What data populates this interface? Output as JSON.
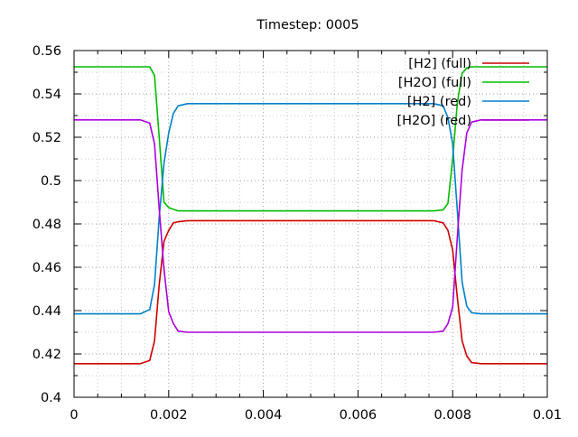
{
  "chart_data": {
    "type": "line",
    "title": "Timestep: 0005",
    "xlabel": "",
    "ylabel": "",
    "xlim": [
      0,
      0.01
    ],
    "ylim": [
      0.4,
      0.56
    ],
    "xticks": [
      "0",
      "0.002",
      "0.004",
      "0.006",
      "0.008",
      "0.01"
    ],
    "xtick_values": [
      0,
      0.002,
      0.004,
      0.006,
      0.008,
      0.01
    ],
    "yticks": [
      "0.4",
      "0.42",
      "0.44",
      "0.46",
      "0.48",
      "0.5",
      "0.52",
      "0.54",
      "0.56"
    ],
    "ytick_values": [
      0.4,
      0.42,
      0.44,
      0.46,
      0.48,
      0.5,
      0.52,
      0.54,
      0.56
    ],
    "grid": true,
    "legend_position": "top-right",
    "series": [
      {
        "name": "[H2] (full)",
        "color": "#cc0000",
        "x": [
          0,
          0.0014,
          0.0016,
          0.0017,
          0.0018,
          0.0019,
          0.002,
          0.0021,
          0.0022,
          0.0024,
          0.0026,
          0.005,
          0.0074,
          0.0076,
          0.0078,
          0.0079,
          0.008,
          0.0081,
          0.0082,
          0.0083,
          0.0084,
          0.0086,
          0.01
        ],
        "y": [
          0.4155,
          0.4155,
          0.417,
          0.426,
          0.452,
          0.472,
          0.477,
          0.4805,
          0.481,
          0.4815,
          0.4815,
          0.4815,
          0.4815,
          0.4815,
          0.4805,
          0.477,
          0.468,
          0.446,
          0.426,
          0.419,
          0.416,
          0.4155,
          0.4155
        ]
      },
      {
        "name": "[H2O] (full)",
        "color": "#00bb00",
        "x": [
          0,
          0.0014,
          0.0016,
          0.0017,
          0.0018,
          0.0019,
          0.002,
          0.0022,
          0.0024,
          0.005,
          0.0076,
          0.0078,
          0.0079,
          0.008,
          0.0081,
          0.0082,
          0.0083,
          0.0084,
          0.0086,
          0.01
        ],
        "y": [
          0.5525,
          0.5525,
          0.5525,
          0.5485,
          0.52,
          0.49,
          0.4875,
          0.486,
          0.486,
          0.486,
          0.486,
          0.4865,
          0.4895,
          0.51,
          0.536,
          0.5495,
          0.552,
          0.5525,
          0.5525,
          0.5525
        ]
      },
      {
        "name": "[H2] (red)",
        "color": "#0080cc",
        "x": [
          0,
          0.0014,
          0.0016,
          0.0017,
          0.0018,
          0.0019,
          0.002,
          0.0021,
          0.0022,
          0.0024,
          0.0026,
          0.005,
          0.0074,
          0.0076,
          0.0078,
          0.0079,
          0.008,
          0.0081,
          0.0082,
          0.0083,
          0.0084,
          0.0086,
          0.01
        ],
        "y": [
          0.4385,
          0.4385,
          0.4405,
          0.452,
          0.483,
          0.508,
          0.522,
          0.531,
          0.5345,
          0.5355,
          0.5355,
          0.5355,
          0.5355,
          0.5355,
          0.5345,
          0.529,
          0.517,
          0.486,
          0.453,
          0.442,
          0.439,
          0.4385,
          0.4385
        ]
      },
      {
        "name": "[H2O] (red)",
        "color": "#aa00dd",
        "x": [
          0,
          0.0014,
          0.0016,
          0.0017,
          0.0018,
          0.0019,
          0.002,
          0.0021,
          0.0022,
          0.0024,
          0.005,
          0.0076,
          0.0078,
          0.0079,
          0.008,
          0.0081,
          0.0082,
          0.0083,
          0.0084,
          0.0086,
          0.01
        ],
        "y": [
          0.528,
          0.528,
          0.5265,
          0.517,
          0.487,
          0.459,
          0.4395,
          0.434,
          0.4305,
          0.43,
          0.43,
          0.43,
          0.4305,
          0.434,
          0.4415,
          0.474,
          0.505,
          0.522,
          0.527,
          0.528,
          0.528
        ]
      }
    ]
  }
}
